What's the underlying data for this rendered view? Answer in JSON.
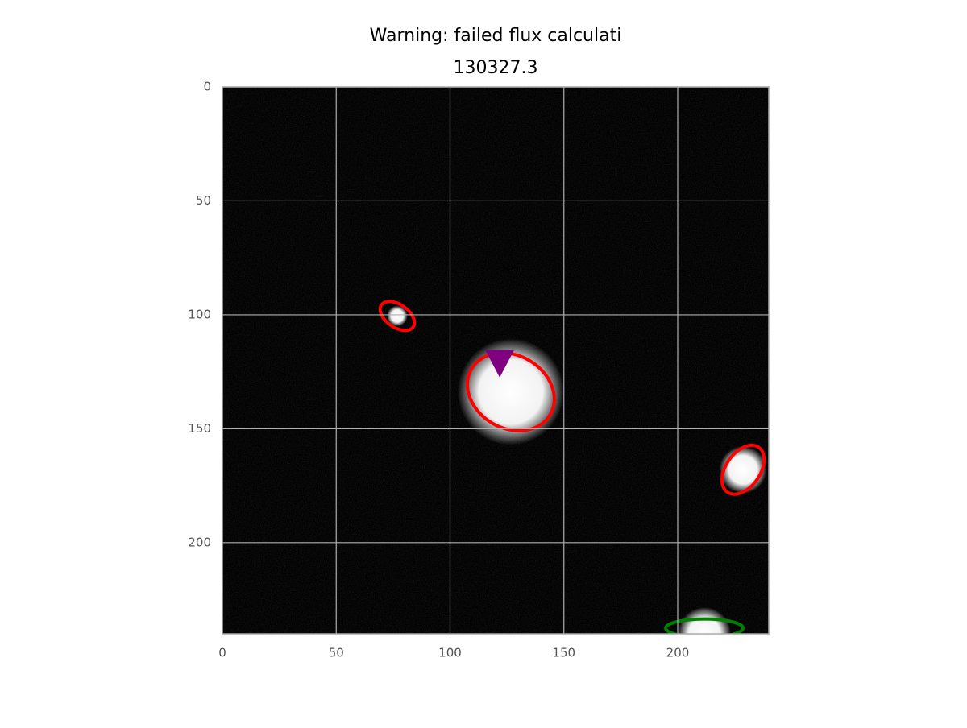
{
  "chart_data": {
    "type": "image",
    "title": "Warning: failed flux calculati",
    "subtitle": "130327.3",
    "xlim": [
      0,
      240
    ],
    "ylim": [
      240,
      0
    ],
    "xticks": [
      0,
      50,
      100,
      150,
      200
    ],
    "yticks": [
      0,
      50,
      100,
      150,
      200
    ],
    "grid": true,
    "sources": [
      {
        "x": 126.7,
        "y": 133.8,
        "r": 18
      },
      {
        "x": 228.7,
        "y": 168,
        "r": 8
      },
      {
        "x": 76.8,
        "y": 100.5,
        "r": 3.5
      },
      {
        "x": 211.7,
        "y": 240,
        "r": 9
      }
    ],
    "ellipses": [
      {
        "x": 76.8,
        "y": 100.5,
        "width": 17,
        "height": 10,
        "angle": 35,
        "color": "#ff0000"
      },
      {
        "x": 126.7,
        "y": 133.8,
        "width": 40,
        "height": 32,
        "angle": 30,
        "color": "#ff0000"
      },
      {
        "x": 228.7,
        "y": 168,
        "width": 24,
        "height": 15,
        "angle": -55,
        "color": "#ff0000"
      },
      {
        "x": 211.7,
        "y": 237.5,
        "width": 34,
        "height": 8,
        "angle": 0,
        "color": "#008000"
      }
    ],
    "marker": {
      "x": 121.8,
      "y": 120.5,
      "shape": "triangle-down",
      "color": "#800080"
    }
  }
}
